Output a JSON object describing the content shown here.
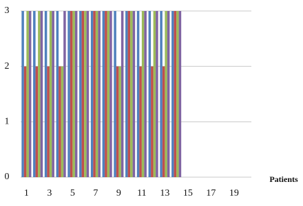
{
  "chart_data": {
    "type": "bar",
    "x_label": "Patients",
    "categories": [
      1,
      null,
      3,
      null,
      5,
      null,
      7,
      null,
      9,
      null,
      11,
      null,
      13,
      null,
      15,
      null,
      17,
      null,
      19,
      null
    ],
    "series": [
      {
        "color": "#4f81bd",
        "values": [
          3,
          3,
          3,
          3,
          3,
          3,
          3,
          3,
          3,
          3,
          3,
          3,
          3,
          3,
          null,
          null,
          null,
          null,
          null,
          null
        ]
      },
      {
        "color": "#c0504d",
        "values": [
          2,
          2,
          2,
          2,
          3,
          3,
          3,
          3,
          2,
          3,
          2,
          2,
          2,
          3,
          null,
          null,
          null,
          null,
          null,
          null
        ]
      },
      {
        "color": "#9bbb59",
        "values": [
          3,
          3,
          3,
          2,
          3,
          3,
          3,
          3,
          2,
          3,
          3,
          3,
          3,
          3,
          null,
          null,
          null,
          null,
          null,
          null
        ]
      },
      {
        "color": "#8064a2",
        "values": [
          3,
          3,
          3,
          3,
          3,
          3,
          3,
          3,
          3,
          3,
          3,
          3,
          3,
          3,
          null,
          null,
          null,
          null,
          null,
          null
        ]
      }
    ],
    "ylim": [
      0,
      3
    ],
    "yticks": [
      0,
      1,
      2,
      3
    ],
    "grid": true
  }
}
